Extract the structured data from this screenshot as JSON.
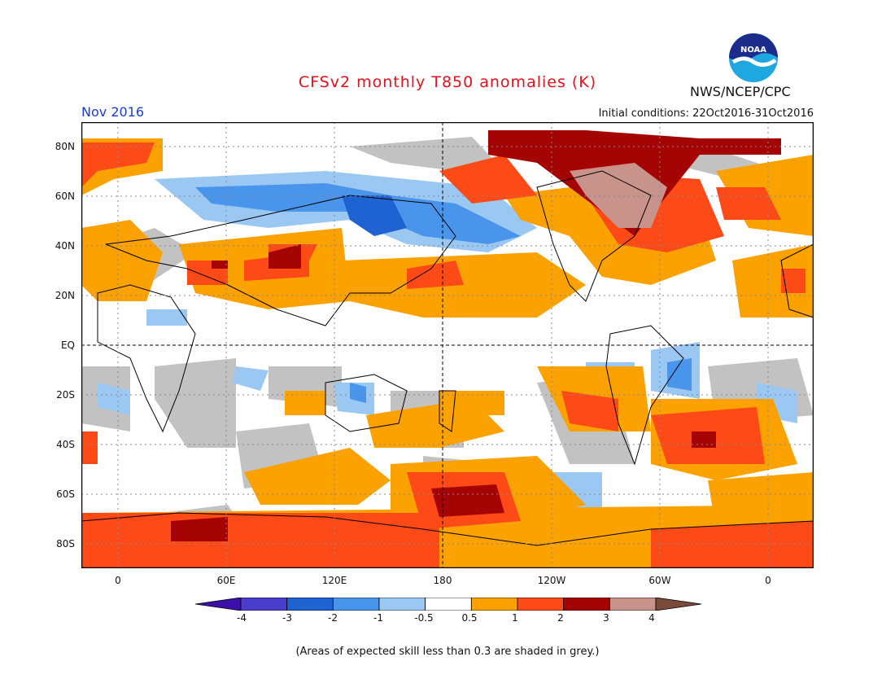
{
  "header": {
    "title": "CFSv2 monthly T850 anomalies (K)",
    "month": "Nov 2016",
    "initial_conditions": "Initial conditions: 22Oct2016-31Oct2016",
    "agency": "NWS/NCEP/CPC",
    "logo_text": "NOAA"
  },
  "map": {
    "lat_labels": [
      "80N",
      "60N",
      "40N",
      "20N",
      "EQ",
      "20S",
      "40S",
      "60S",
      "80S"
    ],
    "lon_labels": [
      "0",
      "60E",
      "120E",
      "180",
      "120W",
      "60W",
      "0"
    ]
  },
  "colorbar": {
    "labels": [
      "-4",
      "-3",
      "-2",
      "-1",
      "-0.5",
      "0.5",
      "1",
      "2",
      "3",
      "4"
    ],
    "colors": [
      "#3b0fa8",
      "#4a3ccc",
      "#1f62d2",
      "#4a95ec",
      "#9ac8f3",
      "#ffffff",
      "#fba100",
      "#fd4a17",
      "#a50404",
      "#c8938b",
      "#7a4a3a"
    ]
  },
  "footer": {
    "note": "(Areas of expected skill less than 0.3 are shaded in grey.)"
  }
}
